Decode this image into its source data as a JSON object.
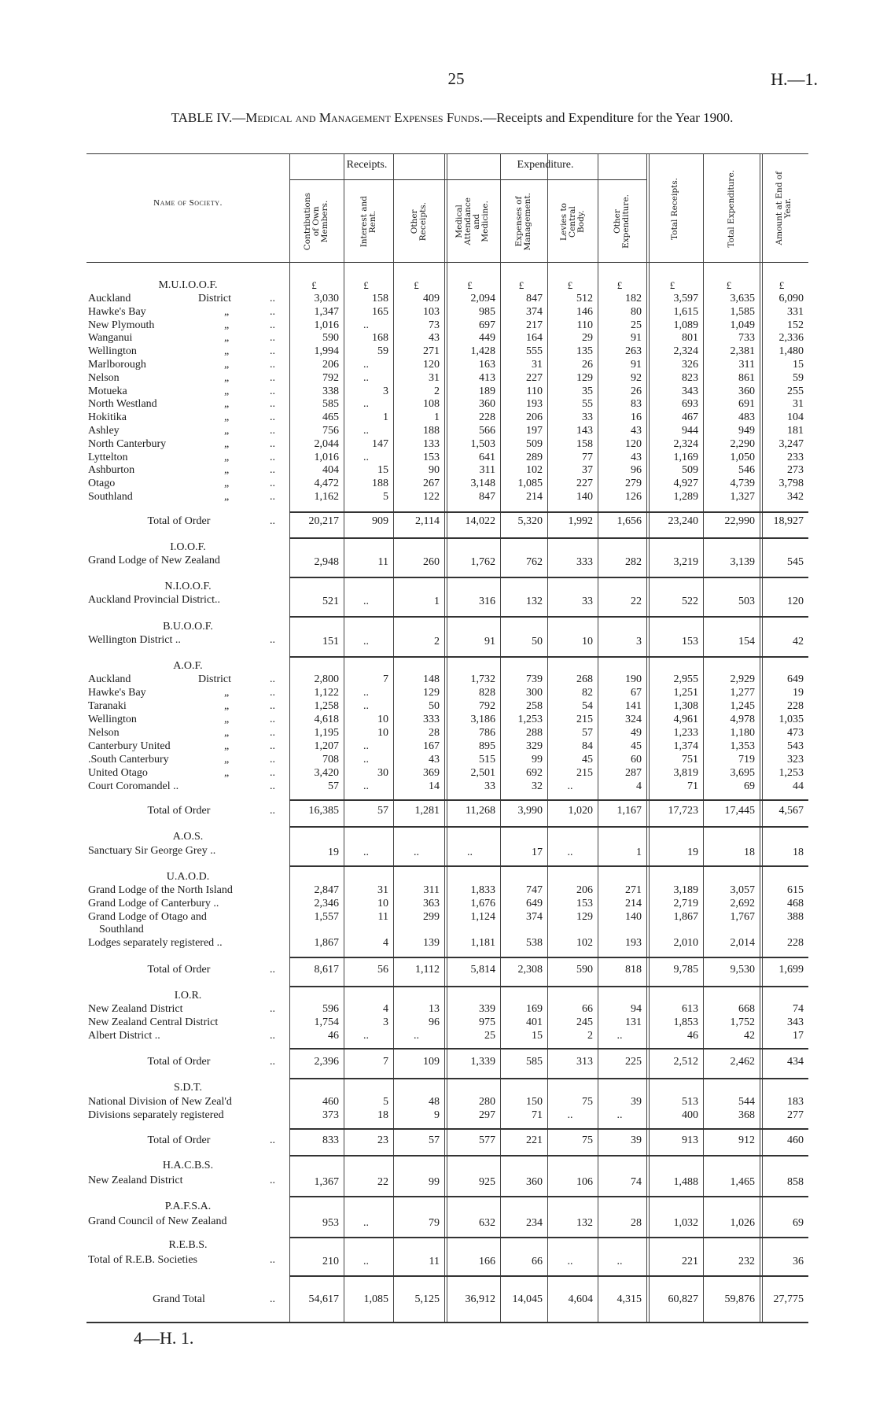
{
  "page_number": "25",
  "doc_ref": "H.—1.",
  "title": {
    "prefix": "TABLE IV.—",
    "subject": "Medical and Management Expenses Funds.",
    "rest": "—Receipts and Expenditure for the Year 1900."
  },
  "header": {
    "name_col": "Name of Society.",
    "receipts_group": "Receipts.",
    "expenditure_group": "Expenditure.",
    "columns": [
      "Contributions\nof Own\nMembers.",
      "Interest and\nRent.",
      "Other\nReceipts.",
      "Medical\nAttendance\nand\nMedicine.",
      "Expenses of\nManagement.",
      "Levies to\nCentral\nBody.",
      "Other\nExpenditure.",
      "Total Receipts.",
      "Total Expenditure.",
      "Amount at End of\nYear."
    ],
    "currency": "£"
  },
  "groups": [
    {
      "heading": "M.U.I.O.O.F.",
      "rows": [
        {
          "name": "Auckland",
          "ditto": "District",
          "leader": "..",
          "values": [
            "3,030",
            "158",
            "409",
            "2,094",
            "847",
            "512",
            "182",
            "3,597",
            "3,635",
            "6,090"
          ]
        },
        {
          "name": "Hawke's Bay",
          "ditto": "„",
          "leader": "..",
          "values": [
            "1,347",
            "165",
            "103",
            "985",
            "374",
            "146",
            "80",
            "1,615",
            "1,585",
            "331"
          ]
        },
        {
          "name": "New Plymouth",
          "ditto": "„",
          "leader": "..",
          "values": [
            "1,016",
            "..",
            "73",
            "697",
            "217",
            "110",
            "25",
            "1,089",
            "1,049",
            "152"
          ]
        },
        {
          "name": "Wanganui",
          "ditto": "„",
          "leader": "..",
          "values": [
            "590",
            "168",
            "43",
            "449",
            "164",
            "29",
            "91",
            "801",
            "733",
            "2,336"
          ]
        },
        {
          "name": "Wellington",
          "ditto": "„",
          "leader": "..",
          "values": [
            "1,994",
            "59",
            "271",
            "1,428",
            "555",
            "135",
            "263",
            "2,324",
            "2,381",
            "1,480"
          ]
        },
        {
          "name": "Marlborough",
          "ditto": "„",
          "leader": "..",
          "values": [
            "206",
            "..",
            "120",
            "163",
            "31",
            "26",
            "91",
            "326",
            "311",
            "15"
          ]
        },
        {
          "name": "Nelson",
          "ditto": "„",
          "leader": "..",
          "values": [
            "792",
            "..",
            "31",
            "413",
            "227",
            "129",
            "92",
            "823",
            "861",
            "59"
          ]
        },
        {
          "name": "Motueka",
          "ditto": "„",
          "leader": "..",
          "values": [
            "338",
            "3",
            "2",
            "189",
            "110",
            "35",
            "26",
            "343",
            "360",
            "255"
          ]
        },
        {
          "name": "North Westland",
          "ditto": "„",
          "leader": "..",
          "values": [
            "585",
            "..",
            "108",
            "360",
            "193",
            "55",
            "83",
            "693",
            "691",
            "31"
          ]
        },
        {
          "name": "Hokitika",
          "ditto": "„",
          "leader": "..",
          "values": [
            "465",
            "1",
            "1",
            "228",
            "206",
            "33",
            "16",
            "467",
            "483",
            "104"
          ]
        },
        {
          "name": "Ashley",
          "ditto": "„",
          "leader": "..",
          "values": [
            "756",
            "..",
            "188",
            "566",
            "197",
            "143",
            "43",
            "944",
            "949",
            "181"
          ]
        },
        {
          "name": "North Canterbury",
          "ditto": "„",
          "leader": "..",
          "values": [
            "2,044",
            "147",
            "133",
            "1,503",
            "509",
            "158",
            "120",
            "2,324",
            "2,290",
            "3,247"
          ]
        },
        {
          "name": "Lyttelton",
          "ditto": "„",
          "leader": "..",
          "values": [
            "1,016",
            "..",
            "153",
            "641",
            "289",
            "77",
            "43",
            "1,169",
            "1,050",
            "233"
          ]
        },
        {
          "name": "Ashburton",
          "ditto": "„",
          "leader": "..",
          "values": [
            "404",
            "15",
            "90",
            "311",
            "102",
            "37",
            "96",
            "509",
            "546",
            "273"
          ]
        },
        {
          "name": "Otago",
          "ditto": "„",
          "leader": "..",
          "values": [
            "4,472",
            "188",
            "267",
            "3,148",
            "1,085",
            "227",
            "279",
            "4,927",
            "4,739",
            "3,798"
          ]
        },
        {
          "name": "Southland",
          "ditto": "„",
          "leader": "..",
          "values": [
            "1,162",
            "5",
            "122",
            "847",
            "214",
            "140",
            "126",
            "1,289",
            "1,327",
            "342"
          ]
        }
      ],
      "total": {
        "label": "Total of Order",
        "leader": "..",
        "values": [
          "20,217",
          "909",
          "2,114",
          "14,022",
          "5,320",
          "1,992",
          "1,656",
          "23,240",
          "22,990",
          "18,927"
        ]
      }
    },
    {
      "heading": "I.O.O.F.",
      "rows": [
        {
          "name": "Grand Lodge of New Zealand",
          "ditto": "",
          "leader": "",
          "values": [
            "2,948",
            "11",
            "260",
            "1,762",
            "762",
            "333",
            "282",
            "3,219",
            "3,139",
            "545"
          ]
        }
      ]
    },
    {
      "heading": "N.I.O.O.F.",
      "rows": [
        {
          "name": "Auckland Provincial District..",
          "ditto": "",
          "leader": "",
          "values": [
            "521",
            "..",
            "1",
            "316",
            "132",
            "33",
            "22",
            "522",
            "503",
            "120"
          ]
        }
      ]
    },
    {
      "heading": "B.U.O.O.F.",
      "rows": [
        {
          "name": "Wellington District ..",
          "ditto": "",
          "leader": "..",
          "values": [
            "151",
            "..",
            "2",
            "91",
            "50",
            "10",
            "3",
            "153",
            "154",
            "42"
          ]
        }
      ]
    },
    {
      "heading": "A.O.F.",
      "rows": [
        {
          "name": "Auckland",
          "ditto": "District",
          "leader": "..",
          "values": [
            "2,800",
            "7",
            "148",
            "1,732",
            "739",
            "268",
            "190",
            "2,955",
            "2,929",
            "649"
          ]
        },
        {
          "name": "Hawke's Bay",
          "ditto": "„",
          "leader": "..",
          "values": [
            "1,122",
            "..",
            "129",
            "828",
            "300",
            "82",
            "67",
            "1,251",
            "1,277",
            "19"
          ]
        },
        {
          "name": "Taranaki",
          "ditto": "„",
          "leader": "..",
          "values": [
            "1,258",
            "..",
            "50",
            "792",
            "258",
            "54",
            "141",
            "1,308",
            "1,245",
            "228"
          ]
        },
        {
          "name": "Wellington",
          "ditto": "„",
          "leader": "..",
          "values": [
            "4,618",
            "10",
            "333",
            "3,186",
            "1,253",
            "215",
            "324",
            "4,961",
            "4,978",
            "1,035"
          ]
        },
        {
          "name": "Nelson",
          "ditto": "„",
          "leader": "..",
          "values": [
            "1,195",
            "10",
            "28",
            "786",
            "288",
            "57",
            "49",
            "1,233",
            "1,180",
            "473"
          ]
        },
        {
          "name": "Canterbury United",
          "ditto": "„",
          "leader": "..",
          "values": [
            "1,207",
            "..",
            "167",
            "895",
            "329",
            "84",
            "45",
            "1,374",
            "1,353",
            "543"
          ]
        },
        {
          "name": ".South Canterbury",
          "ditto": "„",
          "leader": "..",
          "values": [
            "708",
            "..",
            "43",
            "515",
            "99",
            "45",
            "60",
            "751",
            "719",
            "323"
          ]
        },
        {
          "name": "United Otago",
          "ditto": "„",
          "leader": "..",
          "values": [
            "3,420",
            "30",
            "369",
            "2,501",
            "692",
            "215",
            "287",
            "3,819",
            "3,695",
            "1,253"
          ]
        },
        {
          "name": "Court Coromandel ..",
          "ditto": "",
          "leader": "..",
          "values": [
            "57",
            "..",
            "14",
            "33",
            "32",
            "..",
            "4",
            "71",
            "69",
            "44"
          ]
        }
      ],
      "total": {
        "label": "Total of Order",
        "leader": "..",
        "values": [
          "16,385",
          "57",
          "1,281",
          "11,268",
          "3,990",
          "1,020",
          "1,167",
          "17,723",
          "17,445",
          "4,567"
        ]
      }
    },
    {
      "heading": "A.O.S.",
      "rows": [
        {
          "name": "Sanctuary Sir George Grey ..",
          "ditto": "",
          "leader": "",
          "values": [
            "19",
            "..",
            "..",
            "..",
            "17",
            "..",
            "1",
            "19",
            "18",
            "18"
          ]
        }
      ]
    },
    {
      "heading": "U.A.O.D.",
      "rows": [
        {
          "name": "Grand Lodge of the North Island",
          "ditto": "",
          "leader": "",
          "values": [
            "2,847",
            "31",
            "311",
            "1,833",
            "747",
            "206",
            "271",
            "3,189",
            "3,057",
            "615"
          ]
        },
        {
          "name": "Grand Lodge of Canterbury ..",
          "ditto": "",
          "leader": "",
          "values": [
            "2,346",
            "10",
            "363",
            "1,676",
            "649",
            "153",
            "214",
            "2,719",
            "2,692",
            "468"
          ]
        },
        {
          "name": "Grand Lodge of Otago and",
          "continuation": "Southland",
          "ditto": "",
          "leader": "",
          "values": [
            "1,557",
            "11",
            "299",
            "1,124",
            "374",
            "129",
            "140",
            "1,867",
            "1,767",
            "388"
          ]
        },
        {
          "name": "Lodges separately registered ..",
          "ditto": "",
          "leader": "",
          "values": [
            "1,867",
            "4",
            "139",
            "1,181",
            "538",
            "102",
            "193",
            "2,010",
            "2,014",
            "228"
          ]
        }
      ],
      "total": {
        "label": "Total of Order",
        "leader": "..",
        "values": [
          "8,617",
          "56",
          "1,112",
          "5,814",
          "2,308",
          "590",
          "818",
          "9,785",
          "9,530",
          "1,699"
        ]
      }
    },
    {
      "heading": "I.O.R.",
      "rows": [
        {
          "name": "New Zealand District",
          "ditto": "",
          "leader": "..",
          "values": [
            "596",
            "4",
            "13",
            "339",
            "169",
            "66",
            "94",
            "613",
            "668",
            "74"
          ]
        },
        {
          "name": "New Zealand Central District",
          "ditto": "",
          "leader": "",
          "values": [
            "1,754",
            "3",
            "96",
            "975",
            "401",
            "245",
            "131",
            "1,853",
            "1,752",
            "343"
          ]
        },
        {
          "name": "Albert District    ..",
          "ditto": "",
          "leader": "..",
          "values": [
            "46",
            "..",
            "..",
            "25",
            "15",
            "2",
            "..",
            "46",
            "42",
            "17"
          ]
        }
      ],
      "total": {
        "label": "Total of Order",
        "leader": "..",
        "values": [
          "2,396",
          "7",
          "109",
          "1,339",
          "585",
          "313",
          "225",
          "2,512",
          "2,462",
          "434"
        ]
      }
    },
    {
      "heading": "S.D.T.",
      "rows": [
        {
          "name": "National Division of New Zeal'd",
          "ditto": "",
          "leader": "",
          "values": [
            "460",
            "5",
            "48",
            "280",
            "150",
            "75",
            "39",
            "513",
            "544",
            "183"
          ]
        },
        {
          "name": "Divisions separately registered",
          "ditto": "",
          "leader": "",
          "values": [
            "373",
            "18",
            "9",
            "297",
            "71",
            "..",
            "..",
            "400",
            "368",
            "277"
          ]
        }
      ],
      "total": {
        "label": "Total of Order",
        "leader": "..",
        "values": [
          "833",
          "23",
          "57",
          "577",
          "221",
          "75",
          "39",
          "913",
          "912",
          "460"
        ]
      }
    },
    {
      "heading": "H.A.C.B.S.",
      "rows": [
        {
          "name": "New Zealand District",
          "ditto": "",
          "leader": "..",
          "values": [
            "1,367",
            "22",
            "99",
            "925",
            "360",
            "106",
            "74",
            "1,488",
            "1,465",
            "858"
          ]
        }
      ]
    },
    {
      "heading": "P.A.F.S.A.",
      "rows": [
        {
          "name": "Grand Council of New Zealand",
          "ditto": "",
          "leader": "",
          "values": [
            "953",
            "..",
            "79",
            "632",
            "234",
            "132",
            "28",
            "1,032",
            "1,026",
            "69"
          ]
        }
      ]
    },
    {
      "heading": "R.E.B.S.",
      "rows": [
        {
          "name": "Total of R.E.B. Societies",
          "ditto": "",
          "leader": "..",
          "values": [
            "210",
            "..",
            "11",
            "166",
            "66",
            "..",
            "..",
            "221",
            "232",
            "36"
          ]
        }
      ]
    }
  ],
  "grand_total": {
    "label": "Grand Total",
    "leader": "..",
    "values": [
      "54,617",
      "1,085",
      "5,125",
      "36,912",
      "14,045",
      "4,604",
      "4,315",
      "60,827",
      "59,876",
      "27,775"
    ]
  },
  "footer": "4—H. 1."
}
